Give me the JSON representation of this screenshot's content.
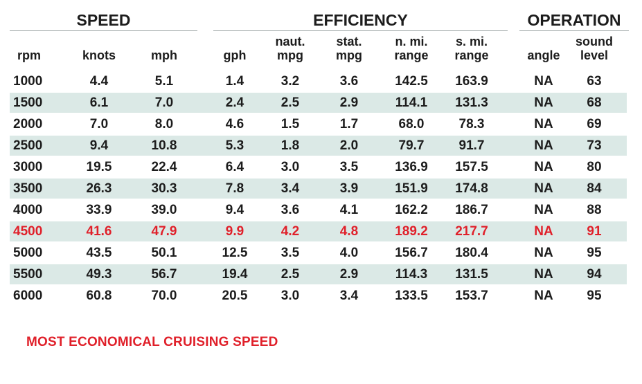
{
  "colors": {
    "stripe": "#dbe9e6",
    "highlight": "#e0202a",
    "text": "#1c1c1c",
    "rule": "#9aa3a3"
  },
  "groups": {
    "speed": "SPEED",
    "efficiency": "EFFICIENCY",
    "operation": "OPERATION"
  },
  "columns": [
    {
      "key": "rpm",
      "l1": "",
      "l2": "rpm"
    },
    {
      "key": "knots",
      "l1": "",
      "l2": "knots"
    },
    {
      "key": "mph",
      "l1": "",
      "l2": "mph"
    },
    {
      "key": "gph",
      "l1": "",
      "l2": "gph"
    },
    {
      "key": "naut_mpg",
      "l1": "naut.",
      "l2": "mpg"
    },
    {
      "key": "stat_mpg",
      "l1": "stat.",
      "l2": "mpg"
    },
    {
      "key": "n_mi_range",
      "l1": "n. mi.",
      "l2": "range"
    },
    {
      "key": "s_mi_range",
      "l1": "s. mi.",
      "l2": "range"
    },
    {
      "key": "angle",
      "l1": "",
      "l2": "angle"
    },
    {
      "key": "sound_level",
      "l1": "sound",
      "l2": "level"
    }
  ],
  "chart_data": {
    "type": "table",
    "highlight_rpm": "4500",
    "rows": [
      [
        "1000",
        "4.4",
        "5.1",
        "1.4",
        "3.2",
        "3.6",
        "142.5",
        "163.9",
        "NA",
        "63"
      ],
      [
        "1500",
        "6.1",
        "7.0",
        "2.4",
        "2.5",
        "2.9",
        "114.1",
        "131.3",
        "NA",
        "68"
      ],
      [
        "2000",
        "7.0",
        "8.0",
        "4.6",
        "1.5",
        "1.7",
        "68.0",
        "78.3",
        "NA",
        "69"
      ],
      [
        "2500",
        "9.4",
        "10.8",
        "5.3",
        "1.8",
        "2.0",
        "79.7",
        "91.7",
        "NA",
        "73"
      ],
      [
        "3000",
        "19.5",
        "22.4",
        "6.4",
        "3.0",
        "3.5",
        "136.9",
        "157.5",
        "NA",
        "80"
      ],
      [
        "3500",
        "26.3",
        "30.3",
        "7.8",
        "3.4",
        "3.9",
        "151.9",
        "174.8",
        "NA",
        "84"
      ],
      [
        "4000",
        "33.9",
        "39.0",
        "9.4",
        "3.6",
        "4.1",
        "162.2",
        "186.7",
        "NA",
        "88"
      ],
      [
        "4500",
        "41.6",
        "47.9",
        "9.9",
        "4.2",
        "4.8",
        "189.2",
        "217.7",
        "NA",
        "91"
      ],
      [
        "5000",
        "43.5",
        "50.1",
        "12.5",
        "3.5",
        "4.0",
        "156.7",
        "180.4",
        "NA",
        "95"
      ],
      [
        "5500",
        "49.3",
        "56.7",
        "19.4",
        "2.5",
        "2.9",
        "114.3",
        "131.5",
        "NA",
        "94"
      ],
      [
        "6000",
        "60.8",
        "70.0",
        "20.5",
        "3.0",
        "3.4",
        "133.5",
        "153.7",
        "NA",
        "95"
      ]
    ]
  },
  "footnote": "MOST ECONOMICAL CRUISING SPEED"
}
